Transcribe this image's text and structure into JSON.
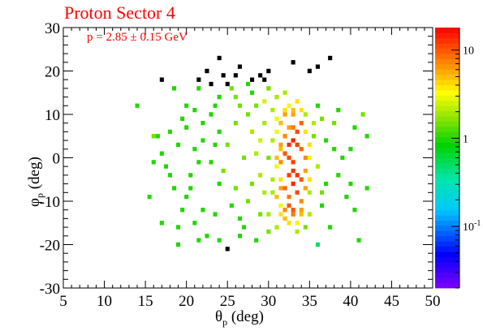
{
  "chart_data": {
    "type": "heatmap",
    "title": "Proton Sector 4",
    "annotation": "p = 2.85 ± 0.15 GeV",
    "xlabel": {
      "symbol": "θ",
      "sub": "p",
      "unit": " (deg)"
    },
    "ylabel": {
      "symbol": "φ",
      "sub": "p",
      "unit": " (deg)"
    },
    "xlim": [
      5,
      50
    ],
    "ylim": [
      -30,
      30
    ],
    "x_ticks": [
      "5",
      "10",
      "15",
      "20",
      "25",
      "30",
      "35",
      "40",
      "45",
      "50"
    ],
    "y_ticks": [
      "-30",
      "-20",
      "-10",
      "0",
      "10",
      "20",
      "30"
    ],
    "z_scale": "log",
    "z_range": [
      0.02,
      18
    ],
    "colorbar_ticks": [
      {
        "value": 10,
        "label": "10"
      },
      {
        "value": 1,
        "label": "1"
      },
      {
        "value": 0.1,
        "label": "10",
        "sup": "-1"
      }
    ],
    "bin_size": {
      "x": 0.5,
      "y": 1
    },
    "cells": [
      [
        33,
        4,
        15
      ],
      [
        33.5,
        3,
        12
      ],
      [
        32.5,
        0,
        11
      ],
      [
        33,
        -6,
        14
      ],
      [
        34,
        8,
        9
      ],
      [
        32,
        5,
        7
      ],
      [
        31.5,
        2,
        5
      ],
      [
        33,
        10,
        6
      ],
      [
        34.5,
        -3,
        6
      ],
      [
        32.5,
        -9,
        8
      ],
      [
        33,
        -12,
        10
      ],
      [
        31.5,
        -5,
        4
      ],
      [
        34,
        -10,
        7
      ],
      [
        31,
        9,
        3
      ],
      [
        32,
        -14,
        5
      ],
      [
        33.5,
        13,
        4
      ],
      [
        35,
        0,
        3
      ],
      [
        31,
        -2,
        3
      ],
      [
        34,
        2,
        9
      ],
      [
        33,
        -1,
        12
      ],
      [
        32.5,
        7,
        6
      ],
      [
        33.5,
        -15,
        3
      ],
      [
        32,
        11,
        4
      ],
      [
        34.5,
        6,
        4
      ],
      [
        31.5,
        -11,
        3
      ],
      [
        30.5,
        4,
        2
      ],
      [
        30.5,
        -8,
        2
      ],
      [
        35,
        -8,
        2
      ],
      [
        34,
        -13,
        5
      ],
      [
        32,
        -7,
        9
      ],
      [
        33,
        -3,
        13
      ],
      [
        34,
        -5,
        10
      ],
      [
        32.5,
        12,
        3
      ],
      [
        33,
        7,
        8
      ],
      [
        32,
        1,
        10
      ],
      [
        31,
        6,
        3
      ],
      [
        34.5,
        10,
        2
      ],
      [
        30,
        0,
        1.5
      ],
      [
        35.5,
        5,
        1.5
      ],
      [
        30,
        -13,
        2
      ],
      [
        26,
        8,
        1.5
      ],
      [
        28,
        6,
        2
      ],
      [
        23,
        10,
        1
      ],
      [
        21,
        2,
        1
      ],
      [
        18,
        -4,
        1
      ],
      [
        19.5,
        9,
        1
      ],
      [
        24.5,
        -3,
        1.5
      ],
      [
        22,
        -12,
        1
      ],
      [
        27,
        -16,
        1
      ],
      [
        25,
        3,
        1.5
      ],
      [
        20,
        -9,
        1
      ],
      [
        29.5,
        13,
        2.5
      ],
      [
        28.5,
        -19,
        1
      ],
      [
        36.5,
        -11,
        1
      ],
      [
        36,
        12,
        1
      ],
      [
        38,
        8,
        1.5
      ],
      [
        40,
        -6,
        1
      ],
      [
        41,
        -19,
        1
      ],
      [
        14,
        12,
        1
      ],
      [
        16,
        5,
        1.5
      ],
      [
        17,
        -15,
        1
      ],
      [
        18.5,
        16,
        1
      ],
      [
        21.5,
        16,
        1
      ],
      [
        25.5,
        16,
        1.5
      ],
      [
        28,
        15,
        1
      ],
      [
        30,
        16,
        1.5
      ],
      [
        26.5,
        12,
        1.5
      ],
      [
        24,
        6,
        1
      ],
      [
        23,
        -1,
        1
      ],
      [
        20.5,
        -7,
        1
      ],
      [
        22.5,
        -18,
        1
      ],
      [
        19,
        -20,
        1
      ],
      [
        25,
        -21,
        0.3
      ],
      [
        27.5,
        -10,
        1.5
      ],
      [
        29,
        -4,
        2
      ],
      [
        29,
        4,
        2.5
      ],
      [
        27,
        0,
        1.5
      ],
      [
        26,
        -7,
        1.5
      ],
      [
        23.5,
        -13,
        1
      ],
      [
        21,
        -15,
        1
      ],
      [
        19,
        3,
        1
      ],
      [
        17.5,
        -2,
        1
      ],
      [
        15.5,
        -9,
        1
      ],
      [
        18,
        6,
        1
      ],
      [
        37,
        4,
        1
      ],
      [
        39,
        0,
        1
      ],
      [
        38.5,
        -4,
        1
      ],
      [
        40,
        2,
        1
      ],
      [
        37.5,
        -16,
        1
      ],
      [
        36,
        -20,
        0.5
      ],
      [
        42,
        5,
        1
      ],
      [
        41.5,
        10,
        1.5
      ],
      [
        20,
        12,
        1
      ],
      [
        22,
        8,
        1
      ],
      [
        24,
        14,
        1
      ],
      [
        27.5,
        17,
        1
      ],
      [
        31,
        14,
        2
      ],
      [
        32,
        15,
        2
      ],
      [
        24,
        23,
        0.3
      ],
      [
        22.5,
        20,
        0.3
      ],
      [
        21.5,
        18,
        0.3
      ],
      [
        17,
        18,
        0.3
      ],
      [
        24.5,
        19,
        0.3
      ],
      [
        26,
        19,
        0.3
      ],
      [
        28,
        18,
        0.3
      ],
      [
        29,
        19,
        0.3
      ],
      [
        26.5,
        21,
        0.3
      ],
      [
        30,
        20,
        0.3
      ],
      [
        35,
        20,
        0.3
      ],
      [
        36,
        21,
        0.3
      ],
      [
        37.5,
        23,
        0.3
      ],
      [
        33,
        22,
        0.3
      ],
      [
        29.5,
        18,
        0.3
      ],
      [
        23,
        17,
        0.3
      ],
      [
        25,
        17,
        0.3
      ],
      [
        16.5,
        5,
        1
      ],
      [
        20.5,
        -4,
        1
      ],
      [
        21.5,
        -1,
        1
      ],
      [
        23.5,
        3,
        1
      ],
      [
        25.5,
        -11,
        1
      ],
      [
        26.5,
        -14,
        1
      ],
      [
        28,
        -6,
        1.5
      ],
      [
        28.5,
        1,
        2
      ],
      [
        29.5,
        -8,
        2
      ],
      [
        30,
        -17,
        1.5
      ],
      [
        29,
        -13,
        1.5
      ],
      [
        27.5,
        10,
        1.5
      ],
      [
        24,
        -6,
        1
      ],
      [
        22,
        4,
        1
      ],
      [
        19.5,
        -12,
        1
      ],
      [
        18.5,
        -7,
        1
      ],
      [
        17,
        1,
        1
      ],
      [
        16,
        -1,
        1
      ],
      [
        20,
        7,
        1
      ],
      [
        21,
        11,
        1
      ],
      [
        23.5,
        12,
        1
      ],
      [
        26,
        14,
        1.5
      ],
      [
        28.5,
        12,
        1.5
      ],
      [
        30.5,
        11,
        2
      ],
      [
        29.5,
        8,
        2
      ],
      [
        30.5,
        -5,
        2
      ],
      [
        31,
        -16,
        2
      ],
      [
        35,
        -13,
        2
      ],
      [
        36.5,
        -8,
        1.5
      ],
      [
        36,
        -2,
        2
      ],
      [
        35.5,
        8,
        2
      ],
      [
        36.5,
        9,
        1.5
      ],
      [
        37,
        -6,
        1
      ],
      [
        38,
        2,
        1
      ],
      [
        39.5,
        -9,
        1
      ],
      [
        40.5,
        -12,
        1
      ],
      [
        42,
        -7,
        1
      ],
      [
        38.5,
        11,
        1
      ],
      [
        40.5,
        7,
        1
      ],
      [
        19,
        -16,
        1
      ],
      [
        21.5,
        -19,
        1
      ],
      [
        24,
        -19,
        1
      ],
      [
        26.5,
        -18,
        1
      ],
      [
        33.5,
        -17,
        2
      ],
      [
        34.5,
        -16,
        1.5
      ],
      [
        32.5,
        -15,
        4
      ],
      [
        31.5,
        -13,
        4
      ],
      [
        31.5,
        -7,
        6
      ],
      [
        31.5,
        -1,
        7
      ],
      [
        31.5,
        3,
        6
      ],
      [
        31.5,
        8,
        5
      ],
      [
        32,
        10,
        6
      ],
      [
        33,
        11,
        5
      ],
      [
        34,
        11,
        4
      ],
      [
        34.5,
        0,
        7
      ],
      [
        34.5,
        -7,
        6
      ],
      [
        33.5,
        -8,
        11
      ],
      [
        33.5,
        -4,
        13
      ],
      [
        32.5,
        -4,
        12
      ],
      [
        32.5,
        3,
        13
      ],
      [
        33.5,
        6,
        11
      ],
      [
        32.5,
        -11,
        10
      ],
      [
        33,
        -13,
        8
      ],
      [
        32,
        -12,
        7
      ],
      [
        34,
        -12,
        6
      ],
      [
        31,
        0,
        5
      ],
      [
        31,
        -9,
        5
      ],
      [
        35,
        3,
        4
      ],
      [
        35,
        -5,
        4
      ]
    ]
  },
  "icons": {
    "colorbar": "rainbow-palette"
  }
}
